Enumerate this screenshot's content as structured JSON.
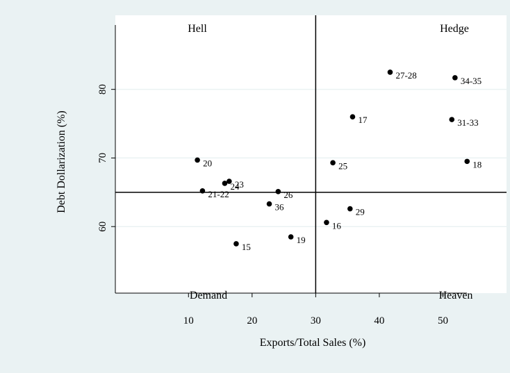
{
  "chart_data": {
    "type": "scatter",
    "xlabel": "Exports/Total Sales (%)",
    "ylabel": "Debt Dollarization (%)",
    "xlim": [
      -1.5,
      60
    ],
    "ylim": [
      50.3,
      90.8
    ],
    "x_ticks": [
      10,
      20,
      30,
      40,
      50
    ],
    "y_ticks": [
      60,
      70,
      80
    ],
    "x_tick_labels": [
      "10",
      "20",
      "30",
      "40",
      "50"
    ],
    "y_tick_labels": [
      "60",
      "70",
      "80"
    ],
    "reference_lines": {
      "x": 30,
      "y": 65
    },
    "grid": {
      "y": true,
      "x": false
    },
    "quadrant_labels": {
      "top_left": "Hell",
      "top_right": "Hedge",
      "bottom_left": "Demand",
      "bottom_right": "Heaven"
    },
    "points": [
      {
        "label": "20",
        "x": 11.4,
        "y": 69.7
      },
      {
        "label": "23",
        "x": 16.4,
        "y": 66.6
      },
      {
        "label": "24",
        "x": 15.7,
        "y": 66.3
      },
      {
        "label": "21-22",
        "x": 12.2,
        "y": 65.2
      },
      {
        "label": "26",
        "x": 24.1,
        "y": 65.1
      },
      {
        "label": "36",
        "x": 22.7,
        "y": 63.3
      },
      {
        "label": "15",
        "x": 17.5,
        "y": 57.5
      },
      {
        "label": "19",
        "x": 26.1,
        "y": 58.5
      },
      {
        "label": "16",
        "x": 31.7,
        "y": 60.6
      },
      {
        "label": "29",
        "x": 35.4,
        "y": 62.6
      },
      {
        "label": "25",
        "x": 32.7,
        "y": 69.3
      },
      {
        "label": "17",
        "x": 35.8,
        "y": 76.0
      },
      {
        "label": "27-28",
        "x": 41.7,
        "y": 82.5
      },
      {
        "label": "34-35",
        "x": 51.9,
        "y": 81.7
      },
      {
        "label": "31-33",
        "x": 51.4,
        "y": 75.6
      },
      {
        "label": "18",
        "x": 53.8,
        "y": 69.5
      }
    ]
  }
}
